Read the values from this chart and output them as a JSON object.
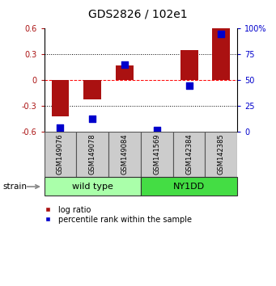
{
  "title": "GDS2826 / 102e1",
  "samples": [
    "GSM149076",
    "GSM149078",
    "GSM149084",
    "GSM141569",
    "GSM142384",
    "GSM142385"
  ],
  "log_ratio": [
    -0.42,
    -0.22,
    0.17,
    0.0,
    0.35,
    0.6
  ],
  "percentile_rank": [
    4,
    13,
    65,
    2,
    45,
    95
  ],
  "groups": [
    {
      "label": "wild type",
      "start": 0,
      "end": 3,
      "color": "#aaffaa"
    },
    {
      "label": "NY1DD",
      "start": 3,
      "end": 6,
      "color": "#44dd44"
    }
  ],
  "bar_color": "#aa1111",
  "dot_color": "#0000cc",
  "ylim_left": [
    -0.6,
    0.6
  ],
  "ylim_right": [
    0,
    100
  ],
  "yticks_left": [
    -0.6,
    -0.3,
    0.0,
    0.3,
    0.6
  ],
  "yticks_right": [
    0,
    25,
    50,
    75,
    100
  ],
  "ytick_labels_right": [
    "0",
    "25",
    "50",
    "75",
    "100%"
  ],
  "hlines": [
    0.3,
    0.0,
    -0.3
  ],
  "hline_styles": [
    "dotted",
    "dashed",
    "dotted"
  ],
  "hline_colors": [
    "black",
    "red",
    "black"
  ],
  "legend_log_ratio": "log ratio",
  "legend_percentile": "percentile rank within the sample",
  "bar_width": 0.55,
  "background_color": "#ffffff",
  "title_fontsize": 10,
  "tick_fontsize": 7,
  "sample_fontsize": 6,
  "group_label_fontsize": 8,
  "legend_fontsize": 7
}
